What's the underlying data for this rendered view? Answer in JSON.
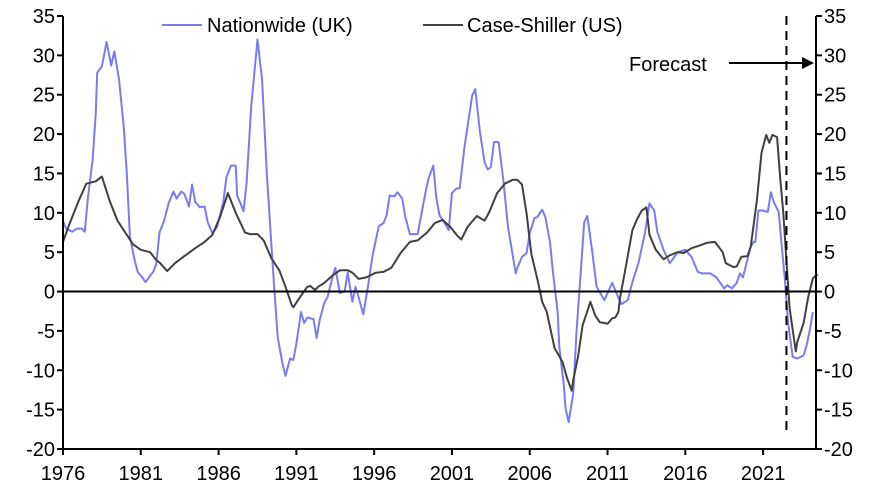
{
  "chart_data": {
    "type": "line",
    "title": "",
    "xlabel": "",
    "ylabel": "",
    "xlim": [
      1976,
      2024.4
    ],
    "ylim": [
      -20,
      35
    ],
    "y2lim": [
      -20,
      35
    ],
    "grid": false,
    "legend_position": "top-center",
    "x_ticks": [
      "1976",
      "1981",
      "1986",
      "1991",
      "1996",
      "2001",
      "2006",
      "2011",
      "2016",
      "2021"
    ],
    "x_tick_values": [
      1976,
      1981,
      1986,
      1991,
      1996,
      2001,
      2006,
      2011,
      2016,
      2021
    ],
    "y_ticks": [
      "35",
      "30",
      "25",
      "20",
      "15",
      "10",
      "5",
      "0",
      "-5",
      "-10",
      "-15",
      "-20"
    ],
    "y_tick_values": [
      35,
      30,
      25,
      20,
      15,
      10,
      5,
      0,
      -5,
      -10,
      -15,
      -20
    ],
    "forecast_start": 2022.5,
    "annotation": "Forecast",
    "series": [
      {
        "name": "Nationwide (UK)",
        "color": "#7b7bf0",
        "points": [
          [
            1976.0,
            9.0
          ],
          [
            1976.2,
            8.0
          ],
          [
            1976.6,
            7.6
          ],
          [
            1976.9,
            8.0
          ],
          [
            1977.2,
            8.0
          ],
          [
            1977.4,
            7.6
          ],
          [
            1977.6,
            11.9
          ],
          [
            1977.9,
            16.7
          ],
          [
            1978.1,
            22.5
          ],
          [
            1978.2,
            27.8
          ],
          [
            1978.5,
            28.6
          ],
          [
            1978.8,
            31.7
          ],
          [
            1979.1,
            28.7
          ],
          [
            1979.3,
            30.5
          ],
          [
            1979.6,
            27.0
          ],
          [
            1979.9,
            21.0
          ],
          [
            1980.1,
            15.0
          ],
          [
            1980.3,
            7.0
          ],
          [
            1980.6,
            4.0
          ],
          [
            1980.8,
            2.5
          ],
          [
            1981.1,
            1.8
          ],
          [
            1981.3,
            1.2
          ],
          [
            1981.6,
            2.0
          ],
          [
            1981.8,
            2.5
          ],
          [
            1982.0,
            3.5
          ],
          [
            1982.2,
            7.5
          ],
          [
            1982.5,
            9.0
          ],
          [
            1982.8,
            11.3
          ],
          [
            1983.1,
            12.7
          ],
          [
            1983.3,
            11.8
          ],
          [
            1983.6,
            12.7
          ],
          [
            1983.8,
            12.4
          ],
          [
            1984.1,
            10.8
          ],
          [
            1984.3,
            13.6
          ],
          [
            1984.5,
            11.4
          ],
          [
            1984.8,
            10.7
          ],
          [
            1985.1,
            10.8
          ],
          [
            1985.3,
            8.8
          ],
          [
            1985.6,
            7.4
          ],
          [
            1985.9,
            8.2
          ],
          [
            1986.3,
            11.3
          ],
          [
            1986.5,
            14.5
          ],
          [
            1986.8,
            16.0
          ],
          [
            1987.1,
            16.0
          ],
          [
            1987.2,
            12.2
          ],
          [
            1987.6,
            10.2
          ],
          [
            1987.8,
            13.8
          ],
          [
            1988.1,
            23.5
          ],
          [
            1988.5,
            32.0
          ],
          [
            1988.8,
            26.9
          ],
          [
            1989.1,
            15.0
          ],
          [
            1989.4,
            5.7
          ],
          [
            1989.6,
            -0.2
          ],
          [
            1989.8,
            -5.8
          ],
          [
            1990.1,
            -9.1
          ],
          [
            1990.3,
            -10.7
          ],
          [
            1990.6,
            -8.5
          ],
          [
            1990.8,
            -8.7
          ],
          [
            1991.0,
            -6.6
          ],
          [
            1991.3,
            -2.6
          ],
          [
            1991.5,
            -4.0
          ],
          [
            1991.7,
            -3.3
          ],
          [
            1992.1,
            -3.5
          ],
          [
            1992.3,
            -5.9
          ],
          [
            1992.5,
            -3.6
          ],
          [
            1992.8,
            -1.4
          ],
          [
            1993.0,
            -0.7
          ],
          [
            1993.3,
            1.7
          ],
          [
            1993.5,
            3.0
          ],
          [
            1993.8,
            -0.2
          ],
          [
            1994.1,
            0.0
          ],
          [
            1994.3,
            2.4
          ],
          [
            1994.6,
            -1.3
          ],
          [
            1994.8,
            0.6
          ],
          [
            1995.0,
            -0.7
          ],
          [
            1995.3,
            -2.9
          ],
          [
            1995.6,
            0.6
          ],
          [
            1995.9,
            4.6
          ],
          [
            1996.3,
            8.3
          ],
          [
            1996.6,
            8.7
          ],
          [
            1996.8,
            9.7
          ],
          [
            1997.0,
            12.2
          ],
          [
            1997.3,
            12.1
          ],
          [
            1997.5,
            12.6
          ],
          [
            1997.8,
            11.8
          ],
          [
            1998.0,
            9.5
          ],
          [
            1998.3,
            7.3
          ],
          [
            1998.8,
            7.3
          ],
          [
            1999.3,
            12.6
          ],
          [
            1999.5,
            14.4
          ],
          [
            1999.8,
            16.0
          ],
          [
            2000.0,
            11.8
          ],
          [
            2000.2,
            9.7
          ],
          [
            2000.5,
            8.8
          ],
          [
            2000.8,
            7.8
          ],
          [
            2001.0,
            12.5
          ],
          [
            2001.3,
            13.1
          ],
          [
            2001.5,
            13.1
          ],
          [
            2001.8,
            18.3
          ],
          [
            2002.3,
            24.9
          ],
          [
            2002.5,
            25.7
          ],
          [
            2002.8,
            20.2
          ],
          [
            2003.1,
            16.4
          ],
          [
            2003.3,
            15.5
          ],
          [
            2003.5,
            15.8
          ],
          [
            2003.7,
            19.0
          ],
          [
            2004.0,
            19.0
          ],
          [
            2004.3,
            14.2
          ],
          [
            2004.6,
            8.2
          ],
          [
            2005.1,
            2.3
          ],
          [
            2005.2,
            3.0
          ],
          [
            2005.5,
            4.4
          ],
          [
            2005.8,
            4.9
          ],
          [
            2006.0,
            7.4
          ],
          [
            2006.3,
            9.3
          ],
          [
            2006.5,
            9.5
          ],
          [
            2006.8,
            10.4
          ],
          [
            2007.0,
            9.5
          ],
          [
            2007.3,
            6.3
          ],
          [
            2007.5,
            2.3
          ],
          [
            2007.8,
            -2.7
          ],
          [
            2007.9,
            -7.0
          ],
          [
            2008.2,
            -12.1
          ],
          [
            2008.3,
            -14.8
          ],
          [
            2008.5,
            -16.6
          ],
          [
            2008.8,
            -12.9
          ],
          [
            2009.0,
            -5.3
          ],
          [
            2009.3,
            3.1
          ],
          [
            2009.5,
            8.8
          ],
          [
            2009.7,
            9.6
          ],
          [
            2010.0,
            5.3
          ],
          [
            2010.3,
            0.6
          ],
          [
            2010.8,
            -1.1
          ],
          [
            2011.3,
            1.1
          ],
          [
            2011.7,
            -0.8
          ],
          [
            2011.9,
            -1.6
          ],
          [
            2012.3,
            -1.1
          ],
          [
            2012.6,
            1.2
          ],
          [
            2013.0,
            3.7
          ],
          [
            2013.4,
            7.4
          ],
          [
            2013.7,
            11.2
          ],
          [
            2014.0,
            10.3
          ],
          [
            2014.2,
            7.6
          ],
          [
            2014.6,
            5.3
          ],
          [
            2015.0,
            3.6
          ],
          [
            2015.3,
            4.4
          ],
          [
            2015.5,
            5.0
          ],
          [
            2016.0,
            5.3
          ],
          [
            2016.4,
            4.4
          ],
          [
            2016.8,
            2.5
          ],
          [
            2017.1,
            2.3
          ],
          [
            2017.6,
            2.3
          ],
          [
            2018.0,
            1.8
          ],
          [
            2018.5,
            0.4
          ],
          [
            2018.7,
            0.8
          ],
          [
            2019.0,
            0.4
          ],
          [
            2019.3,
            1.1
          ],
          [
            2019.5,
            2.3
          ],
          [
            2019.7,
            1.8
          ],
          [
            2020.2,
            5.7
          ],
          [
            2020.4,
            6.3
          ],
          [
            2020.5,
            6.3
          ],
          [
            2020.7,
            10.3
          ],
          [
            2021.0,
            10.3
          ],
          [
            2021.3,
            10.1
          ],
          [
            2021.5,
            12.6
          ],
          [
            2021.7,
            11.3
          ],
          [
            2022.0,
            10.1
          ],
          [
            2022.2,
            5.7
          ],
          [
            2022.4,
            1.5
          ],
          [
            2022.6,
            -3.9
          ],
          [
            2022.9,
            -8.3
          ],
          [
            2023.2,
            -8.5
          ],
          [
            2023.6,
            -8.1
          ],
          [
            2023.8,
            -6.8
          ],
          [
            2024.0,
            -4.9
          ],
          [
            2024.2,
            -2.6
          ]
        ]
      },
      {
        "name": "Case-Shiller (US)",
        "color": "#404040",
        "points": [
          [
            1976.0,
            6.3
          ],
          [
            1976.4,
            8.5
          ],
          [
            1977.0,
            11.5
          ],
          [
            1977.5,
            13.7
          ],
          [
            1978.1,
            14.0
          ],
          [
            1978.5,
            14.6
          ],
          [
            1979.0,
            11.5
          ],
          [
            1979.5,
            9.0
          ],
          [
            1980.0,
            7.5
          ],
          [
            1980.5,
            6.0
          ],
          [
            1981.0,
            5.3
          ],
          [
            1981.6,
            5.0
          ],
          [
            1982.0,
            4.0
          ],
          [
            1982.2,
            3.7
          ],
          [
            1982.7,
            2.6
          ],
          [
            1983.2,
            3.6
          ],
          [
            1983.8,
            4.5
          ],
          [
            1984.5,
            5.5
          ],
          [
            1985.1,
            6.3
          ],
          [
            1985.6,
            7.2
          ],
          [
            1986.1,
            9.5
          ],
          [
            1986.6,
            12.5
          ],
          [
            1987.1,
            10.0
          ],
          [
            1987.7,
            7.5
          ],
          [
            1988.0,
            7.3
          ],
          [
            1988.5,
            7.3
          ],
          [
            1988.9,
            6.5
          ],
          [
            1989.4,
            4.2
          ],
          [
            1989.9,
            2.7
          ],
          [
            1990.3,
            0.6
          ],
          [
            1990.7,
            -1.7
          ],
          [
            1990.8,
            -2.0
          ],
          [
            1991.2,
            -0.8
          ],
          [
            1991.7,
            0.6
          ],
          [
            1991.9,
            0.7
          ],
          [
            1992.2,
            0.2
          ],
          [
            1992.4,
            0.6
          ],
          [
            1992.8,
            1.1
          ],
          [
            1993.3,
            2.0
          ],
          [
            1993.8,
            2.7
          ],
          [
            1994.3,
            2.7
          ],
          [
            1994.6,
            2.4
          ],
          [
            1995.0,
            1.6
          ],
          [
            1995.5,
            1.8
          ],
          [
            1996.1,
            2.4
          ],
          [
            1996.6,
            2.5
          ],
          [
            1997.1,
            3.0
          ],
          [
            1997.7,
            4.9
          ],
          [
            1998.3,
            6.3
          ],
          [
            1998.8,
            6.5
          ],
          [
            1999.4,
            7.5
          ],
          [
            1999.9,
            8.7
          ],
          [
            2000.4,
            9.1
          ],
          [
            2000.9,
            8.2
          ],
          [
            2001.3,
            7.2
          ],
          [
            2001.6,
            6.6
          ],
          [
            2002.0,
            8.2
          ],
          [
            2002.6,
            9.6
          ],
          [
            2003.1,
            9.0
          ],
          [
            2003.4,
            10.1
          ],
          [
            2003.9,
            12.5
          ],
          [
            2004.4,
            13.7
          ],
          [
            2004.9,
            14.2
          ],
          [
            2005.2,
            14.2
          ],
          [
            2005.5,
            13.6
          ],
          [
            2005.8,
            9.9
          ],
          [
            2006.1,
            4.8
          ],
          [
            2006.5,
            1.5
          ],
          [
            2006.8,
            -1.3
          ],
          [
            2007.1,
            -2.6
          ],
          [
            2007.3,
            -4.5
          ],
          [
            2007.6,
            -7.2
          ],
          [
            2008.1,
            -8.9
          ],
          [
            2008.4,
            -11.0
          ],
          [
            2008.7,
            -12.6
          ],
          [
            2008.8,
            -11.2
          ],
          [
            2009.1,
            -8.3
          ],
          [
            2009.4,
            -4.3
          ],
          [
            2009.9,
            -1.3
          ],
          [
            2010.2,
            -3.0
          ],
          [
            2010.5,
            -3.9
          ],
          [
            2010.8,
            -4.0
          ],
          [
            2011.0,
            -4.1
          ],
          [
            2011.3,
            -3.4
          ],
          [
            2011.5,
            -3.3
          ],
          [
            2011.7,
            -2.6
          ],
          [
            2011.8,
            -0.8
          ],
          [
            2012.1,
            2.3
          ],
          [
            2012.6,
            7.8
          ],
          [
            2012.9,
            9.2
          ],
          [
            2013.2,
            10.3
          ],
          [
            2013.5,
            10.7
          ],
          [
            2013.7,
            7.2
          ],
          [
            2014.1,
            5.3
          ],
          [
            2014.6,
            4.1
          ],
          [
            2015.0,
            4.6
          ],
          [
            2015.5,
            5.0
          ],
          [
            2015.9,
            4.9
          ],
          [
            2016.4,
            5.5
          ],
          [
            2017.0,
            5.9
          ],
          [
            2017.4,
            6.2
          ],
          [
            2017.9,
            6.3
          ],
          [
            2018.4,
            5.0
          ],
          [
            2018.6,
            3.6
          ],
          [
            2019.1,
            3.1
          ],
          [
            2019.3,
            3.2
          ],
          [
            2019.6,
            4.4
          ],
          [
            2020.0,
            4.5
          ],
          [
            2020.2,
            5.7
          ],
          [
            2020.6,
            11.6
          ],
          [
            2020.9,
            17.6
          ],
          [
            2021.2,
            19.9
          ],
          [
            2021.4,
            18.9
          ],
          [
            2021.6,
            19.9
          ],
          [
            2021.9,
            19.6
          ],
          [
            2022.1,
            14.4
          ],
          [
            2022.3,
            10.0
          ],
          [
            2022.5,
            4.0
          ],
          [
            2022.7,
            -2.1
          ],
          [
            2023.1,
            -7.6
          ],
          [
            2023.2,
            -6.4
          ],
          [
            2023.6,
            -4.0
          ],
          [
            2023.9,
            -0.7
          ],
          [
            2024.2,
            1.7
          ],
          [
            2024.5,
            2.2
          ]
        ]
      }
    ]
  }
}
